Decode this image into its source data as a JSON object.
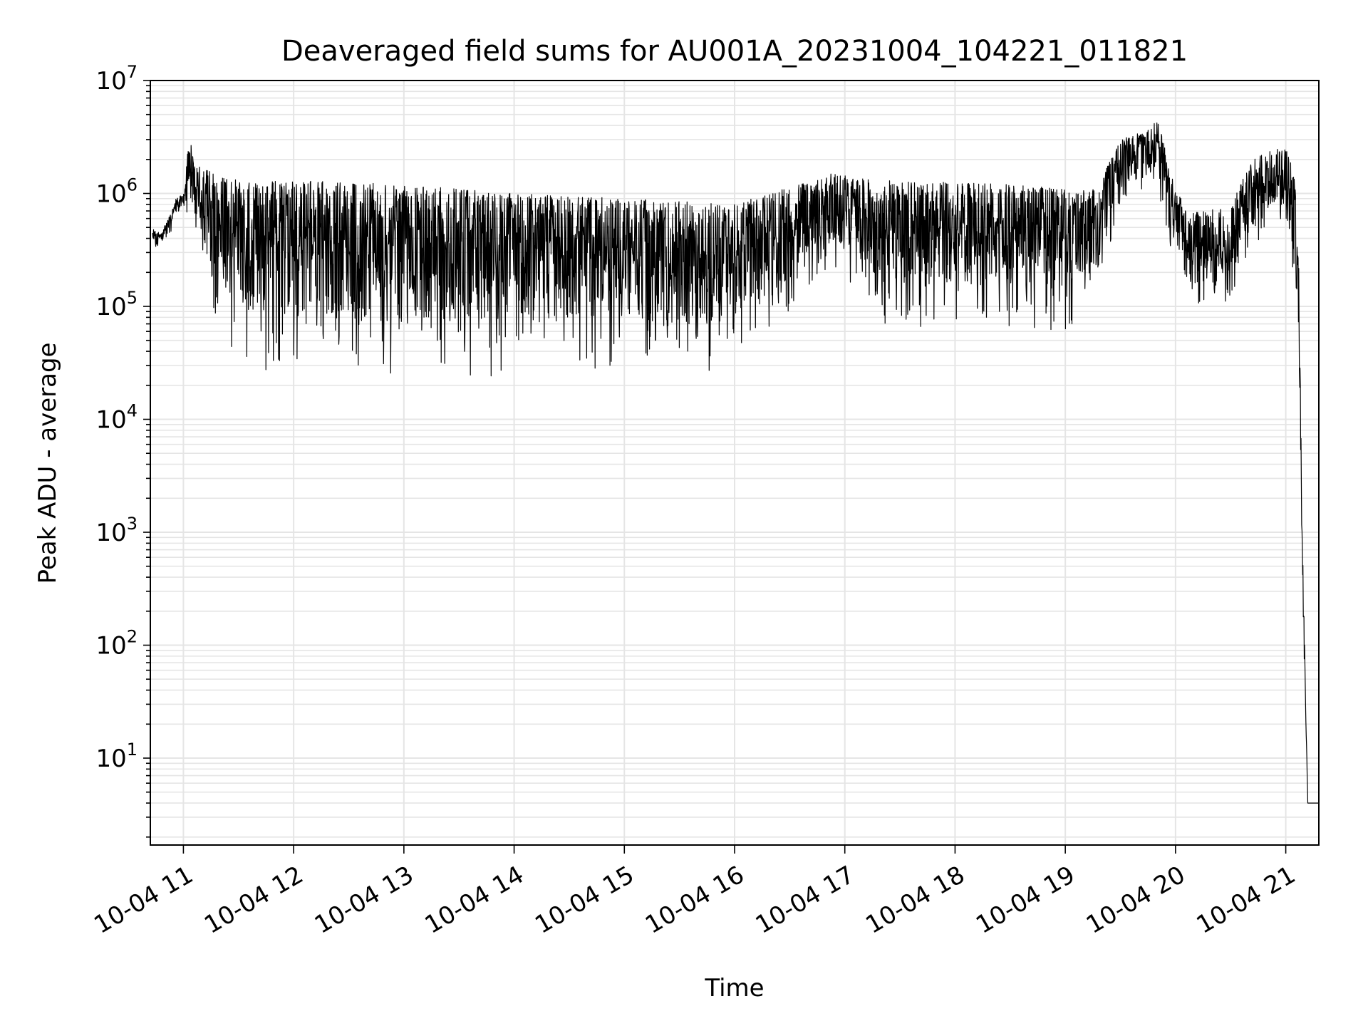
{
  "chart_data": {
    "type": "line",
    "title": "Deaveraged field sums for AU001A_20231004_104221_011821",
    "xlabel": "Time",
    "ylabel": "Peak ADU - average",
    "yscale": "log",
    "ylim": [
      1.7,
      10000000
    ],
    "xlim": [
      "10-04 10:42",
      "10-04 21:18"
    ],
    "grid": true,
    "line_color": "#000000",
    "grid_color": "#e5e5e5",
    "x_ticks": [
      "10-04 11",
      "10-04 12",
      "10-04 13",
      "10-04 14",
      "10-04 15",
      "10-04 16",
      "10-04 17",
      "10-04 18",
      "10-04 19",
      "10-04 20",
      "10-04 21"
    ],
    "y_ticks": [
      {
        "base": "10",
        "exp": "1"
      },
      {
        "base": "10",
        "exp": "2"
      },
      {
        "base": "10",
        "exp": "3"
      },
      {
        "base": "10",
        "exp": "4"
      },
      {
        "base": "10",
        "exp": "5"
      },
      {
        "base": "10",
        "exp": "6"
      },
      {
        "base": "10",
        "exp": "7"
      }
    ],
    "series": [
      {
        "x_hours": [
          10.72,
          10.78,
          10.85,
          10.93,
          11.0,
          11.05,
          11.15,
          11.3,
          11.5,
          11.75,
          12.0,
          12.5,
          13.0,
          13.5,
          14.0,
          14.5,
          15.0,
          15.5,
          16.0,
          16.3,
          16.6,
          16.85,
          17.1,
          17.3,
          17.5,
          18.0,
          18.5,
          19.0,
          19.3,
          19.5,
          19.7,
          19.85,
          19.95,
          20.1,
          20.3,
          20.5,
          20.7,
          20.9,
          21.0,
          21.08,
          21.12,
          21.15,
          21.2,
          21.3
        ],
        "upper": [
          500000,
          450000,
          550000,
          900000,
          1000000,
          3000000,
          1700000,
          1500000,
          1400000,
          1300000,
          1300000,
          1250000,
          1200000,
          1100000,
          1000000,
          950000,
          900000,
          850000,
          800000,
          1000000,
          1200000,
          1500000,
          1400000,
          1300000,
          1300000,
          1250000,
          1200000,
          1100000,
          1200000,
          3000000,
          3500000,
          4500000,
          1500000,
          700000,
          700000,
          800000,
          2000000,
          2500000,
          2500000,
          1500000,
          200000,
          1000,
          4,
          4
        ],
        "lower": [
          300000,
          300000,
          350000,
          600000,
          700000,
          500000,
          300000,
          60000,
          30000,
          25000,
          25000,
          22000,
          22000,
          22000,
          25000,
          25000,
          22000,
          20000,
          30000,
          50000,
          100000,
          200000,
          150000,
          60000,
          55000,
          60000,
          60000,
          55000,
          100000,
          800000,
          1000000,
          800000,
          200000,
          80000,
          90000,
          100000,
          300000,
          400000,
          300000,
          100000,
          20000,
          300,
          4,
          4
        ]
      }
    ]
  }
}
